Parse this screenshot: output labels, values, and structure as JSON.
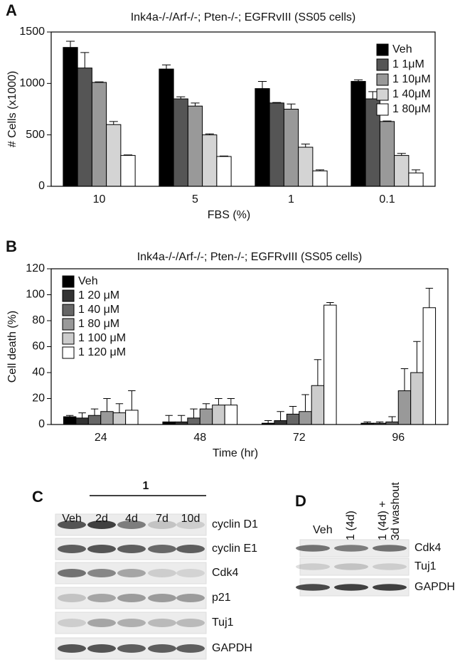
{
  "chart_data": [
    {
      "type": "bar",
      "label": "A",
      "title": "Ink4a-/-/Arf-/-; Pten-/-; EGFRvIII (SS05 cells)",
      "x_label": "FBS (%)",
      "y_label": "# Cells (x1000)",
      "categories": [
        "10",
        "5",
        "1",
        "0.1"
      ],
      "series": [
        {
          "name": "Veh",
          "color": "#000000",
          "values": [
            1350,
            1140,
            950,
            1020
          ],
          "errors": [
            60,
            40,
            70,
            15
          ]
        },
        {
          "name": "1 1μM",
          "color": "#555555",
          "values": [
            1150,
            850,
            810,
            850
          ],
          "errors": [
            150,
            20,
            5,
            70
          ]
        },
        {
          "name": "1 10μM",
          "color": "#999999",
          "values": [
            1010,
            780,
            750,
            630
          ],
          "errors": [
            5,
            30,
            50,
            5
          ]
        },
        {
          "name": "1 40μM",
          "color": "#d4d4d4",
          "values": [
            600,
            500,
            380,
            300
          ],
          "errors": [
            30,
            10,
            30,
            20
          ]
        },
        {
          "name": "1 80μM",
          "color": "#ffffff",
          "values": [
            300,
            290,
            150,
            130
          ],
          "errors": [
            5,
            5,
            10,
            30
          ]
        }
      ],
      "ylim": [
        0,
        1500
      ],
      "yticks": [
        0,
        500,
        1000,
        1500
      ],
      "legend": "upper right"
    },
    {
      "type": "bar",
      "label": "B",
      "title": "Ink4a-/-/Arf-/-; Pten-/-; EGFRvIII (SS05 cells)",
      "x_label": "Time (hr)",
      "y_label": "Cell death (%)",
      "categories": [
        "24",
        "48",
        "72",
        "96"
      ],
      "series": [
        {
          "name": "Veh",
          "color": "#000000",
          "values": [
            6,
            2,
            1,
            1
          ],
          "errors": [
            1,
            5,
            2,
            1
          ]
        },
        {
          "name": "1 20 μM",
          "color": "#333333",
          "values": [
            5,
            2,
            3,
            1
          ],
          "errors": [
            4,
            5,
            7,
            1
          ]
        },
        {
          "name": "1 40 μM",
          "color": "#666666",
          "values": [
            7,
            5,
            8,
            2
          ],
          "errors": [
            5,
            7,
            6,
            4
          ]
        },
        {
          "name": "1 80 μM",
          "color": "#999999",
          "values": [
            10,
            12,
            10,
            26
          ],
          "errors": [
            10,
            4,
            13,
            17
          ]
        },
        {
          "name": "1 100 μM",
          "color": "#cccccc",
          "values": [
            9,
            15,
            30,
            40
          ],
          "errors": [
            7,
            5,
            20,
            24
          ]
        },
        {
          "name": "1 120 μM",
          "color": "#ffffff",
          "values": [
            11,
            15,
            92,
            90
          ],
          "errors": [
            15,
            5,
            2,
            15
          ]
        }
      ],
      "ylim": [
        0,
        120
      ],
      "yticks": [
        0,
        20,
        40,
        60,
        80,
        100,
        120
      ],
      "legend": "upper left"
    }
  ],
  "blots": [
    {
      "label": "C",
      "group_label": "1",
      "columns": [
        [
          "Veh"
        ],
        [
          "2d"
        ],
        [
          "4d"
        ],
        [
          "7d"
        ],
        [
          "10d"
        ]
      ],
      "rows": [
        "cyclin D1",
        "cyclin E1",
        "Cdk4",
        "p21",
        "Tuj1",
        "GAPDH"
      ]
    },
    {
      "label": "D",
      "columns": [
        [
          "Veh"
        ],
        [
          "1 (4d)"
        ],
        [
          "1 (4d) +",
          "3d washout"
        ]
      ],
      "rows": [
        "Cdk4",
        "Tuj1",
        "GAPDH"
      ]
    }
  ]
}
